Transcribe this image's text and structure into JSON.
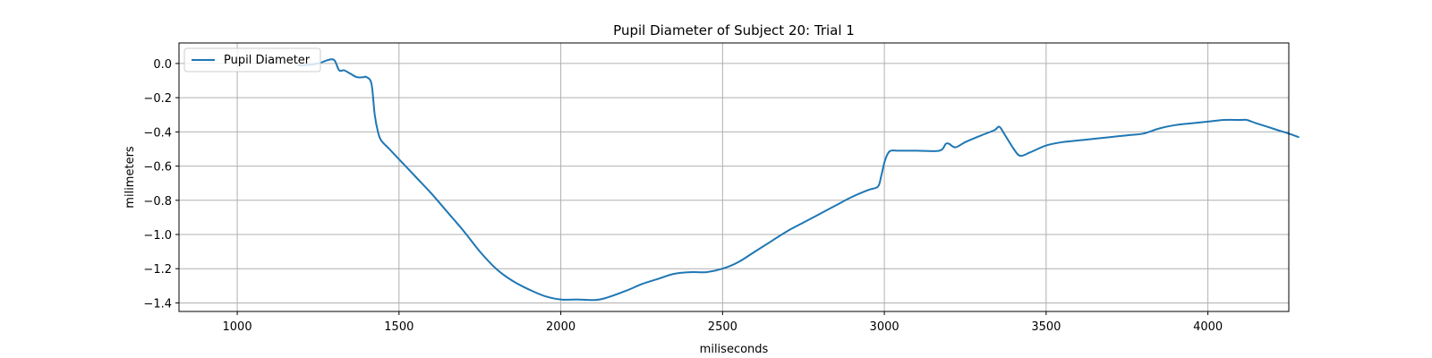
{
  "chart_data": {
    "type": "line",
    "title": "Pupil Diameter of Subject 20: Trial 1",
    "xlabel": "miliseconds",
    "ylabel": "milimeters",
    "xlim": [
      820,
      4250
    ],
    "ylim": [
      -1.45,
      0.12
    ],
    "xticks": [
      1000,
      1500,
      2000,
      2500,
      3000,
      3500,
      4000
    ],
    "yticks": [
      0.0,
      -0.2,
      -0.4,
      -0.6,
      -0.8,
      -1.0,
      -1.2,
      -1.4
    ],
    "xtick_labels": [
      "1000",
      "1500",
      "2000",
      "2500",
      "3000",
      "3500",
      "4000"
    ],
    "ytick_labels": [
      "0.0",
      "−0.2",
      "−0.4",
      "−0.6",
      "−0.8",
      "−1.0",
      "−1.2",
      "−1.4"
    ],
    "grid": true,
    "legend": {
      "position": "upper-left",
      "entries": [
        "Pupil Diameter"
      ]
    },
    "series": [
      {
        "name": "Pupil Diameter",
        "color": "#1f77b4",
        "x": [
          1190,
          1210,
          1250,
          1280,
          1300,
          1315,
          1330,
          1350,
          1370,
          1390,
          1400,
          1415,
          1425,
          1435,
          1445,
          1470,
          1500,
          1550,
          1600,
          1650,
          1700,
          1750,
          1800,
          1850,
          1900,
          1950,
          2000,
          2050,
          2120,
          2200,
          2250,
          2300,
          2350,
          2400,
          2450,
          2500,
          2550,
          2600,
          2650,
          2700,
          2750,
          2800,
          2850,
          2900,
          2950,
          2980,
          2990,
          3000,
          3010,
          3020,
          3040,
          3100,
          3170,
          3190,
          3200,
          3220,
          3250,
          3300,
          3340,
          3355,
          3370,
          3400,
          3420,
          3450,
          3500,
          3550,
          3600,
          3650,
          3700,
          3750,
          3800,
          3850,
          3900,
          3950,
          4000,
          4050,
          4100,
          4120,
          4150,
          4200,
          4250,
          4280
        ],
        "y": [
          -0.01,
          -0.01,
          0.0,
          0.02,
          0.02,
          -0.04,
          -0.04,
          -0.06,
          -0.08,
          -0.08,
          -0.08,
          -0.12,
          -0.3,
          -0.4,
          -0.45,
          -0.5,
          -0.56,
          -0.66,
          -0.76,
          -0.87,
          -0.98,
          -1.1,
          -1.2,
          -1.27,
          -1.32,
          -1.36,
          -1.38,
          -1.38,
          -1.38,
          -1.33,
          -1.29,
          -1.26,
          -1.23,
          -1.22,
          -1.22,
          -1.2,
          -1.16,
          -1.1,
          -1.04,
          -0.98,
          -0.93,
          -0.88,
          -0.83,
          -0.78,
          -0.74,
          -0.72,
          -0.66,
          -0.58,
          -0.53,
          -0.51,
          -0.51,
          -0.51,
          -0.51,
          -0.47,
          -0.47,
          -0.49,
          -0.46,
          -0.42,
          -0.39,
          -0.37,
          -0.41,
          -0.5,
          -0.54,
          -0.52,
          -0.48,
          -0.46,
          -0.45,
          -0.44,
          -0.43,
          -0.42,
          -0.41,
          -0.38,
          -0.36,
          -0.35,
          -0.34,
          -0.33,
          -0.33,
          -0.33,
          -0.35,
          -0.38,
          -0.41,
          -0.43
        ]
      }
    ]
  }
}
